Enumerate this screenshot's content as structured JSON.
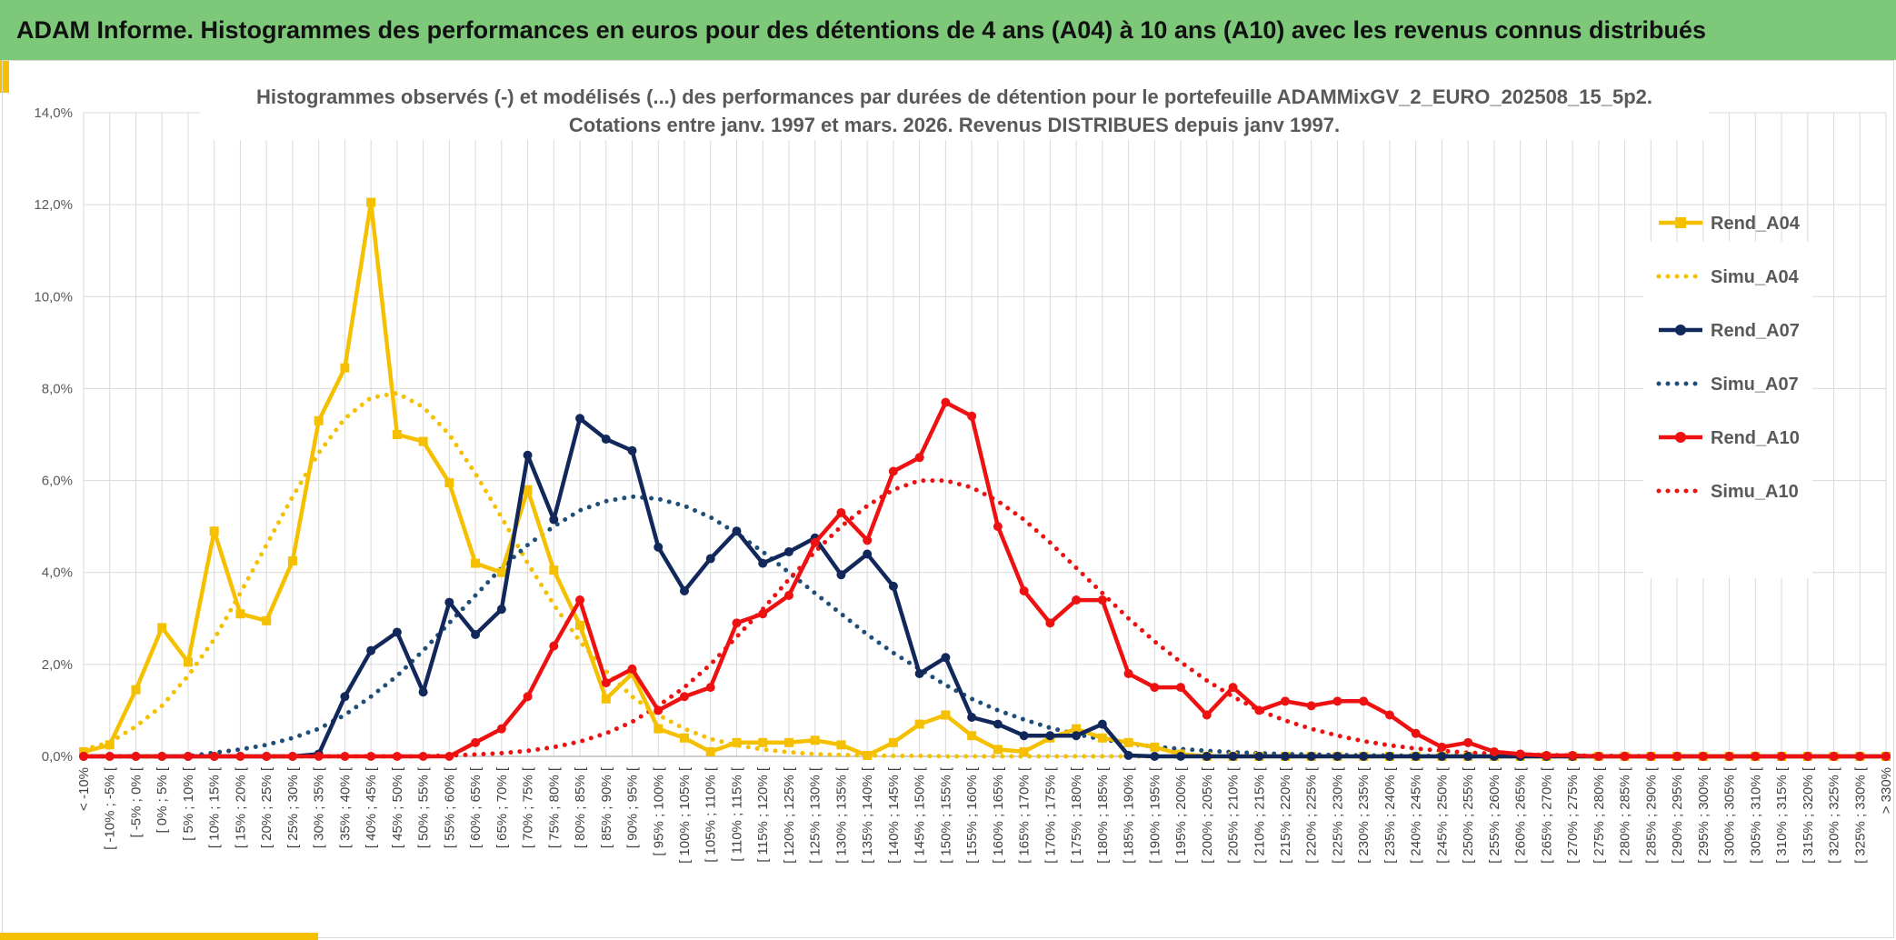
{
  "banner": {
    "title": "ADAM Informe. Histogrammes des performances en euros pour des détentions de 4 ans (A04) à 10 ans (A10) avec les revenus connus distribués"
  },
  "colors": {
    "banner_bg": "#7ec87a",
    "accent": "#f5c000",
    "a04": "#f5c000",
    "a07": "#12285a",
    "a07_simu": "#1f4e79",
    "a10": "#ee1111"
  },
  "chart_data": {
    "type": "line",
    "title": "Histogrammes observés (-) et modélisés (...) des performances par durées de détention pour le portefeuille ADAMMixGV_2_EURO_202508_15_5p2.",
    "subtitle": "Cotations entre janv. 1997 et mars. 2026. Revenus DISTRIBUES depuis janv 1997.",
    "ylim": [
      0,
      14
    ],
    "yticks": [
      "0,0%",
      "2,0%",
      "4,0%",
      "6,0%",
      "8,0%",
      "10,0%",
      "12,0%",
      "14,0%"
    ],
    "grid": true,
    "legend_position": "right",
    "categories": [
      "< -10%",
      "[ -10% ; -5% [",
      "[ -5% ; 0% [",
      "[ 0% ; 5% [",
      "[ 5% ; 10% [",
      "[ 10% ; 15% [",
      "[ 15% ; 20% [",
      "[ 20% ; 25% [",
      "[ 25% ; 30% [",
      "[ 30% ; 35% [",
      "[ 35% ; 40% [",
      "[ 40% ; 45% [",
      "[ 45% ; 50% [",
      "[ 50% ; 55% [",
      "[ 55% ; 60% [",
      "[ 60% ; 65% [",
      "[ 65% ; 70% [",
      "[ 70% ; 75% [",
      "[ 75% ; 80% [",
      "[ 80% ; 85% [",
      "[ 85% ; 90% [",
      "[ 90% ; 95% [",
      "[ 95% ; 100% [",
      "[ 100% ; 105% [",
      "[ 105% ; 110% [",
      "[ 110% ; 115% [",
      "[ 115% ; 120% [",
      "[ 120% ; 125% [",
      "[ 125% ; 130% [",
      "[ 130% ; 135% [",
      "[ 135% ; 140% [",
      "[ 140% ; 145% [",
      "[ 145% ; 150% [",
      "[ 150% ; 155% [",
      "[ 155% ; 160% [",
      "[ 160% ; 165% [",
      "[ 165% ; 170% [",
      "[ 170% ; 175% [",
      "[ 175% ; 180% [",
      "[ 180% ; 185% [",
      "[ 185% ; 190% [",
      "[ 190% ; 195% [",
      "[ 195% ; 200% [",
      "[ 200% ; 205% [",
      "[ 205% ; 210% [",
      "[ 210% ; 215% [",
      "[ 215% ; 220% [",
      "[ 220% ; 225% [",
      "[ 225% ; 230% [",
      "[ 230% ; 235% [",
      "[ 235% ; 240% [",
      "[ 240% ; 245% [",
      "[ 245% ; 250% [",
      "[ 250% ; 255% [",
      "[ 255% ; 260% [",
      "[ 260% ; 265% [",
      "[ 265% ; 270% [",
      "[ 270% ; 275% [",
      "[ 275% ; 280% [",
      "[ 280% ; 285% [",
      "[ 285% ; 290% [",
      "[ 290% ; 295% [",
      "[ 295% ; 300% [",
      "[ 300% ; 305% [",
      "[ 305% ; 310% [",
      "[ 310% ; 315% [",
      "[ 315% ; 320% [",
      "[ 320% ; 325% [",
      "[ 325% ; 330% [",
      "> 330%"
    ],
    "series": [
      {
        "name": "Rend_A04",
        "style": "solid",
        "marker": "square",
        "color": "#f5c000",
        "values": [
          0.1,
          0.25,
          1.45,
          2.8,
          2.05,
          4.9,
          3.1,
          2.95,
          4.25,
          7.3,
          8.45,
          12.05,
          7.0,
          6.85,
          5.95,
          4.2,
          4.0,
          5.8,
          4.05,
          2.85,
          1.25,
          1.8,
          0.6,
          0.4,
          0.1,
          0.3,
          0.3,
          0.3,
          0.35,
          0.25,
          0.02,
          0.3,
          0.7,
          0.9,
          0.45,
          0.15,
          0.1,
          0.4,
          0.6,
          0.4,
          0.3,
          0.2,
          0.05,
          0,
          0,
          0,
          0,
          0,
          0,
          0,
          0,
          0,
          0,
          0,
          0,
          0,
          0,
          0,
          0,
          0,
          0,
          0,
          0,
          0,
          0,
          0,
          0,
          0,
          0,
          0
        ]
      },
      {
        "name": "Simu_A04",
        "style": "dotted",
        "color": "#f5c000",
        "values": [
          0.15,
          0.3,
          0.65,
          1.1,
          1.75,
          2.55,
          3.55,
          4.6,
          5.65,
          6.6,
          7.35,
          7.8,
          7.9,
          7.6,
          7.0,
          6.15,
          5.2,
          4.2,
          3.3,
          2.5,
          1.85,
          1.3,
          0.9,
          0.6,
          0.38,
          0.24,
          0.15,
          0.09,
          0.05,
          0.03,
          0.02,
          0.01,
          0.01,
          0,
          0,
          0,
          0,
          0,
          0,
          0,
          0,
          0,
          0,
          0,
          0,
          0,
          0,
          0,
          0,
          0,
          0,
          0,
          0,
          0,
          0,
          0,
          0,
          0,
          0,
          0,
          0,
          0,
          0,
          0,
          0,
          0,
          0,
          0,
          0,
          0
        ]
      },
      {
        "name": "Rend_A07",
        "style": "solid",
        "marker": "circle",
        "color": "#12285a",
        "values": [
          0,
          0,
          0,
          0,
          0,
          0,
          0,
          0,
          0,
          0.05,
          1.3,
          2.3,
          2.7,
          1.4,
          3.35,
          2.65,
          3.2,
          6.55,
          5.15,
          7.35,
          6.9,
          6.65,
          4.55,
          3.6,
          4.3,
          4.9,
          4.2,
          4.45,
          4.75,
          3.95,
          4.4,
          3.7,
          1.8,
          2.15,
          0.85,
          0.7,
          0.45,
          0.45,
          0.45,
          0.7,
          0.02,
          0,
          0,
          0,
          0,
          0,
          0,
          0,
          0,
          0,
          0,
          0,
          0,
          0,
          0,
          0,
          0,
          0,
          0,
          0,
          0,
          0,
          0,
          0,
          0,
          0,
          0,
          0,
          0,
          0
        ]
      },
      {
        "name": "Simu_A07",
        "style": "dotted",
        "color": "#1f4e79",
        "values": [
          0,
          0,
          0,
          0,
          0,
          0.08,
          0.15,
          0.25,
          0.4,
          0.6,
          0.9,
          1.3,
          1.75,
          2.3,
          2.9,
          3.5,
          4.1,
          4.6,
          5.0,
          5.35,
          5.55,
          5.65,
          5.6,
          5.45,
          5.2,
          4.85,
          4.45,
          4.0,
          3.55,
          3.1,
          2.65,
          2.25,
          1.9,
          1.55,
          1.25,
          1.0,
          0.8,
          0.62,
          0.48,
          0.37,
          0.28,
          0.21,
          0.16,
          0.12,
          0.09,
          0.07,
          0.05,
          0.04,
          0.03,
          0.02,
          0.02,
          0.01,
          0.01,
          0.01,
          0,
          0,
          0,
          0,
          0,
          0,
          0,
          0,
          0,
          0,
          0,
          0,
          0,
          0,
          0,
          0
        ]
      },
      {
        "name": "Rend_A10",
        "style": "solid",
        "marker": "circle",
        "color": "#ee1111",
        "values": [
          0,
          0,
          0,
          0,
          0,
          0,
          0,
          0,
          0,
          0,
          0,
          0,
          0,
          0,
          0,
          0.3,
          0.6,
          1.3,
          2.4,
          3.4,
          1.6,
          1.9,
          1.0,
          1.3,
          1.5,
          2.9,
          3.1,
          3.5,
          4.65,
          5.3,
          4.7,
          6.2,
          6.5,
          7.7,
          7.4,
          5.0,
          3.6,
          2.9,
          3.4,
          3.4,
          1.8,
          1.5,
          1.5,
          0.9,
          1.5,
          1.0,
          1.2,
          1.1,
          1.2,
          1.2,
          0.9,
          0.5,
          0.2,
          0.3,
          0.1,
          0.05,
          0.02,
          0.02,
          0,
          0,
          0,
          0,
          0,
          0,
          0,
          0,
          0,
          0,
          0,
          0
        ]
      },
      {
        "name": "Simu_A10",
        "style": "dotted",
        "color": "#ee1111",
        "values": [
          0,
          0,
          0,
          0,
          0,
          0,
          0,
          0,
          0,
          0,
          0,
          0,
          0,
          0,
          0.02,
          0.04,
          0.07,
          0.12,
          0.2,
          0.32,
          0.5,
          0.75,
          1.1,
          1.5,
          2.0,
          2.6,
          3.2,
          3.85,
          4.45,
          5.0,
          5.45,
          5.8,
          6.0,
          6.0,
          5.85,
          5.55,
          5.15,
          4.65,
          4.1,
          3.55,
          3.0,
          2.5,
          2.05,
          1.65,
          1.3,
          1.0,
          0.78,
          0.6,
          0.45,
          0.33,
          0.24,
          0.17,
          0.12,
          0.08,
          0.06,
          0.04,
          0.03,
          0.02,
          0.01,
          0.01,
          0,
          0,
          0,
          0,
          0,
          0,
          0,
          0,
          0,
          0
        ]
      }
    ]
  }
}
